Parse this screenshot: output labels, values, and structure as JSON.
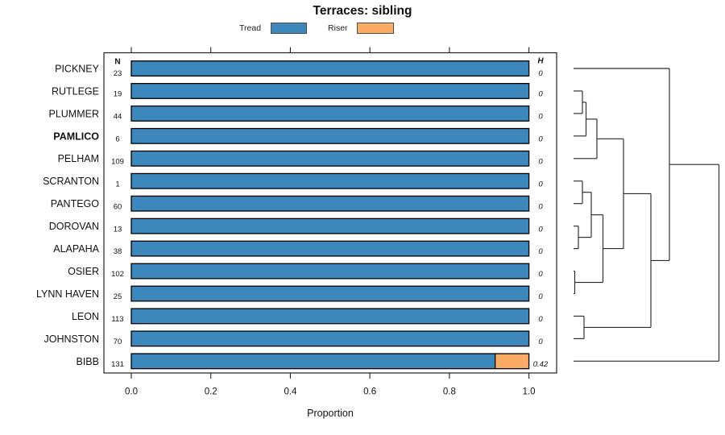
{
  "title": "Terraces: sibling",
  "legend": {
    "items": [
      {
        "label": "Tread",
        "color": "#3c87bb"
      },
      {
        "label": "Riser",
        "color": "#fbab64"
      }
    ]
  },
  "chart_data": {
    "type": "bar",
    "stacked": true,
    "orientation": "horizontal",
    "title": "Terraces: sibling",
    "xlabel": "Proportion",
    "xlim": [
      0,
      1
    ],
    "xticks": [
      "0.0",
      "0.2",
      "0.4",
      "0.6",
      "0.8",
      "1.0"
    ],
    "n_header": "N",
    "h_header": "H",
    "series_names": [
      "Tread",
      "Riser"
    ],
    "rows": [
      {
        "label": "PICKNEY",
        "emphasis": false,
        "n": 23,
        "tread": 1.0,
        "riser": 0.0,
        "h": "0"
      },
      {
        "label": "RUTLEGE",
        "emphasis": false,
        "n": 19,
        "tread": 1.0,
        "riser": 0.0,
        "h": "0"
      },
      {
        "label": "PLUMMER",
        "emphasis": false,
        "n": 44,
        "tread": 1.0,
        "riser": 0.0,
        "h": "0"
      },
      {
        "label": "PAMLICO",
        "emphasis": true,
        "n": 6,
        "tread": 1.0,
        "riser": 0.0,
        "h": "0"
      },
      {
        "label": "PELHAM",
        "emphasis": false,
        "n": 109,
        "tread": 1.0,
        "riser": 0.0,
        "h": "0"
      },
      {
        "label": "SCRANTON",
        "emphasis": false,
        "n": 1,
        "tread": 1.0,
        "riser": 0.0,
        "h": "0"
      },
      {
        "label": "PANTEGO",
        "emphasis": false,
        "n": 60,
        "tread": 1.0,
        "riser": 0.0,
        "h": "0"
      },
      {
        "label": "DOROVAN",
        "emphasis": false,
        "n": 13,
        "tread": 1.0,
        "riser": 0.0,
        "h": "0"
      },
      {
        "label": "ALAPAHA",
        "emphasis": false,
        "n": 38,
        "tread": 1.0,
        "riser": 0.0,
        "h": "0"
      },
      {
        "label": "OSIER",
        "emphasis": false,
        "n": 102,
        "tread": 1.0,
        "riser": 0.0,
        "h": "0"
      },
      {
        "label": "LYNN HAVEN",
        "emphasis": false,
        "n": 25,
        "tread": 1.0,
        "riser": 0.0,
        "h": "0"
      },
      {
        "label": "LEON",
        "emphasis": false,
        "n": 113,
        "tread": 1.0,
        "riser": 0.0,
        "h": "0"
      },
      {
        "label": "JOHNSTON",
        "emphasis": false,
        "n": 70,
        "tread": 1.0,
        "riser": 0.0,
        "h": "0"
      },
      {
        "label": "BIBB",
        "emphasis": false,
        "n": 131,
        "tread": 0.915,
        "riser": 0.085,
        "h": "0.42"
      }
    ],
    "dendrogram": {
      "tree": {
        "x": 892.5,
        "children": [
          {
            "x": 831,
            "children": [
              "PICKNEY",
              {
                "x": 808,
                "children": [
                  {
                    "x": 774,
                    "children": [
                      {
                        "x": 741,
                        "children": [
                          {
                            "x": 727.5,
                            "children": [
                              {
                                "x": 723,
                                "children": [
                                  "RUTLEGE",
                                  "PLUMMER"
                                ]
                              },
                              "PAMLICO"
                            ]
                          },
                          "PELHAM"
                        ]
                      },
                      {
                        "x": 748.5,
                        "children": [
                          {
                            "x": 734,
                            "children": [
                              {
                                "x": 723,
                                "children": [
                                  "SCRANTON",
                                  "PANTEGO"
                                ]
                              },
                              {
                                "x": 718,
                                "children": [
                                  "DOROVAN",
                                  "ALAPAHA"
                                ]
                              }
                            ]
                          },
                          {
                            "x": 713.5,
                            "children": [
                              "OSIER",
                              "LYNN HAVEN"
                            ]
                          }
                        ]
                      }
                    ]
                  },
                  {
                    "x": 725,
                    "children": [
                      "LEON",
                      "JOHNSTON"
                    ]
                  }
                ]
              }
            ]
          },
          "BIBB"
        ]
      }
    }
  }
}
